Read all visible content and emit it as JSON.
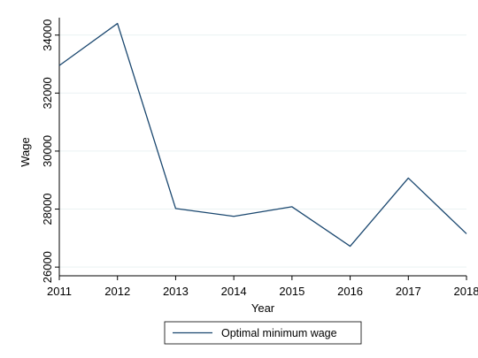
{
  "chart_data": {
    "type": "line",
    "xlabel": "Year",
    "ylabel": "Wage",
    "x": [
      2011,
      2012,
      2013,
      2014,
      2015,
      2016,
      2017,
      2018
    ],
    "x_ticks": [
      "2011",
      "2012",
      "2013",
      "2014",
      "2015",
      "2016",
      "2017",
      "2018"
    ],
    "y_ticks": [
      "26000",
      "28000",
      "30000",
      "32000",
      "34000"
    ],
    "xlim": [
      2011,
      2018
    ],
    "ylim": [
      25700,
      34600
    ],
    "grid": true,
    "legend_position": "bottom",
    "series": [
      {
        "name": "Optimal minimum wage",
        "color": "#1a476f",
        "values": [
          32950,
          34400,
          28020,
          27750,
          28080,
          26720,
          29070,
          27150
        ]
      }
    ]
  }
}
